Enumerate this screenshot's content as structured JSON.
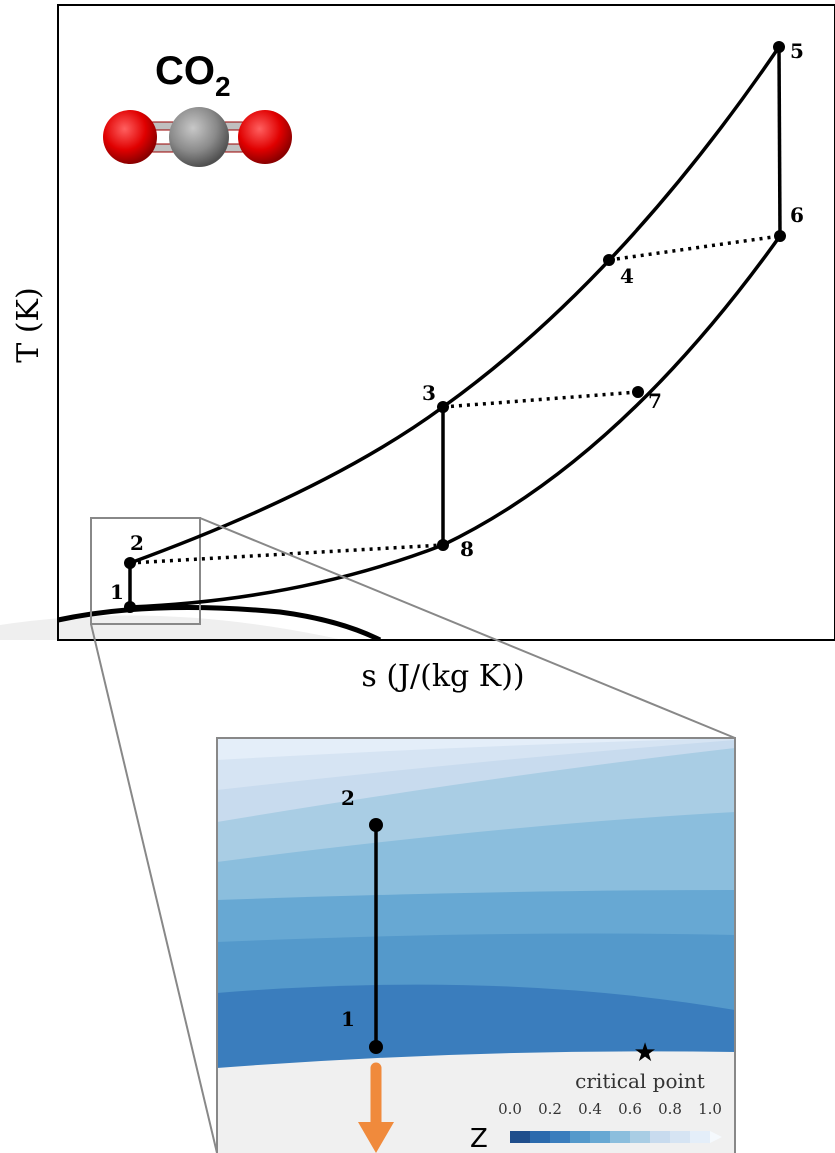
{
  "molecule": {
    "label": "CO",
    "subscript": "2"
  },
  "axes": {
    "y_label": "T (K)",
    "x_label": "s (J/(kg K))"
  },
  "points": [
    "1",
    "2",
    "3",
    "4",
    "5",
    "6",
    "7",
    "8"
  ],
  "zoom": {
    "points": [
      "1",
      "2"
    ],
    "critical_point": "critical point",
    "colorbar_label": "Z",
    "colorbar_ticks": [
      "0.0",
      "0.2",
      "0.4",
      "0.6",
      "0.8",
      "1.0"
    ]
  }
}
